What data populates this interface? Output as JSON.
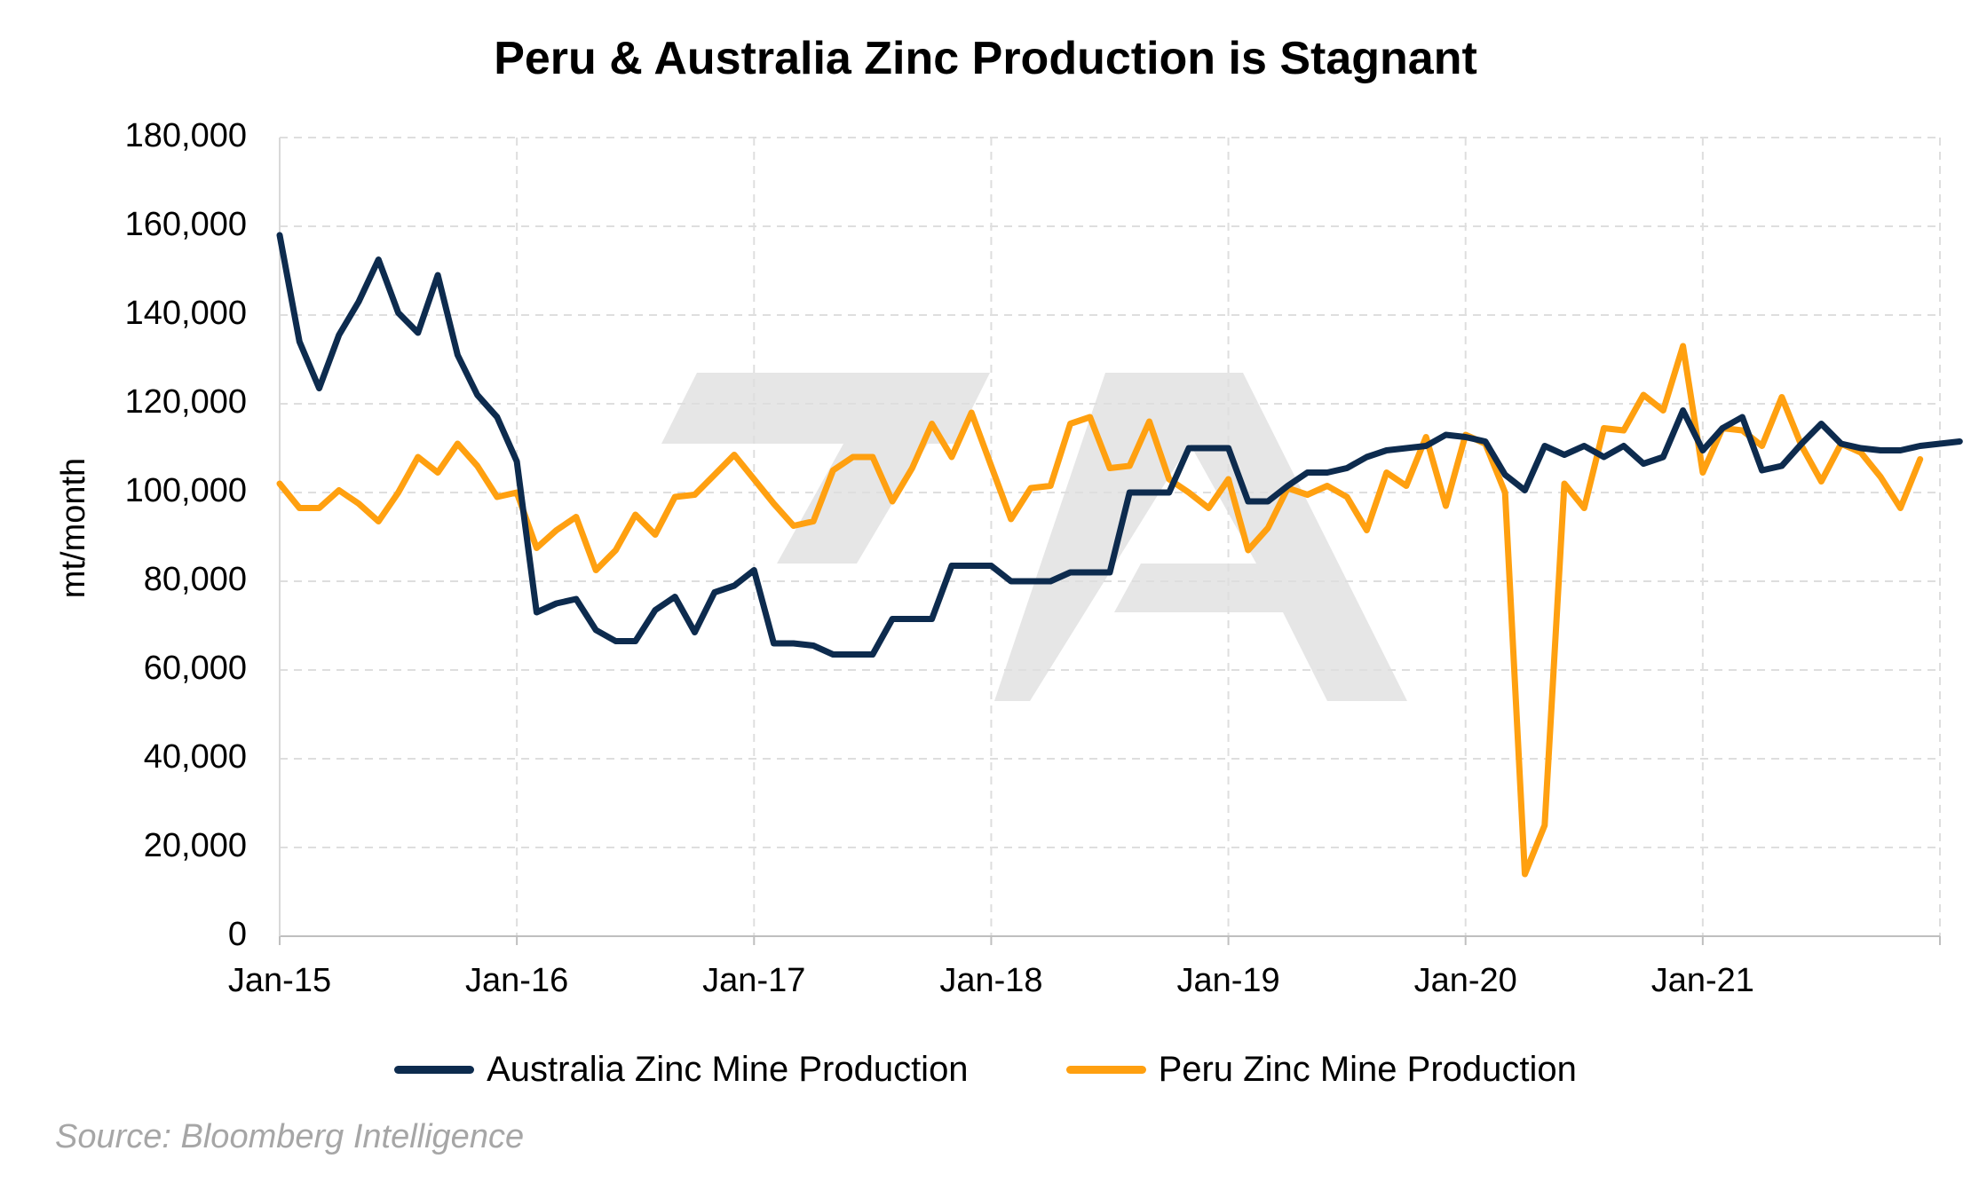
{
  "chart_data": {
    "type": "line",
    "title": "Peru & Australia Zinc Production is Stagnant",
    "ylabel": "mt/month",
    "xlabel": "",
    "ylim": [
      0,
      180000
    ],
    "yticks": [
      "0",
      "20,000",
      "40,000",
      "60,000",
      "80,000",
      "100,000",
      "120,000",
      "140,000",
      "160,000",
      "180,000"
    ],
    "xticks": [
      "Jan-15",
      "Jan-16",
      "Jan-17",
      "Jan-18",
      "Jan-19",
      "Jan-20",
      "Jan-21"
    ],
    "x_start": "Jan-15",
    "x_period": "monthly",
    "grid": true,
    "legend_position": "bottom",
    "series": [
      {
        "name": "Australia Zinc Mine Production",
        "color": "#0d2b4e",
        "values": [
          158000,
          134000,
          123500,
          135500,
          143000,
          152500,
          140500,
          136000,
          149000,
          131000,
          122000,
          117000,
          107000,
          73000,
          75000,
          76000,
          69000,
          66500,
          66500,
          73500,
          76500,
          68500,
          77500,
          79000,
          82500,
          66000,
          66000,
          65500,
          63500,
          63500,
          63500,
          71500,
          71500,
          71500,
          83500,
          83500,
          83500,
          80000,
          80000,
          80000,
          82000,
          82000,
          82000,
          100000,
          100000,
          100000,
          110000,
          110000,
          110000,
          98000,
          98000,
          101500,
          104500,
          104500,
          105500,
          108000,
          109500,
          110000,
          110500,
          113000,
          112500,
          111500,
          104000,
          100500,
          110500,
          108500,
          110500,
          108000,
          110500,
          106500,
          108000,
          118500,
          109500,
          114500,
          117000,
          105000,
          106000,
          111000,
          115500,
          111000,
          110000,
          109500,
          109500,
          110500,
          111000,
          111500
        ]
      },
      {
        "name": "Peru Zinc Mine Production",
        "color": "#ffa010",
        "values": [
          102000,
          96500,
          96500,
          100500,
          97500,
          93500,
          100000,
          108000,
          104500,
          111000,
          106000,
          99000,
          100000,
          87500,
          91500,
          94500,
          82500,
          87000,
          95000,
          90500,
          99000,
          99500,
          104000,
          108500,
          103000,
          97500,
          92500,
          93500,
          105000,
          108000,
          108000,
          98000,
          105500,
          115500,
          108000,
          118000,
          106000,
          94000,
          101000,
          101500,
          115500,
          117000,
          105500,
          106000,
          116000,
          103000,
          100000,
          96500,
          103000,
          87000,
          92000,
          101000,
          99500,
          101500,
          99000,
          91500,
          104500,
          101500,
          112500,
          97000,
          113000,
          111000,
          100000,
          14000,
          25000,
          102000,
          96500,
          114500,
          114000,
          122000,
          118500,
          133000,
          104500,
          114500,
          114000,
          110500,
          121500,
          110500,
          102500,
          111000,
          109000,
          103500,
          96500,
          107500
        ]
      }
    ]
  },
  "source": "Source: Bloomberg Intelligence"
}
